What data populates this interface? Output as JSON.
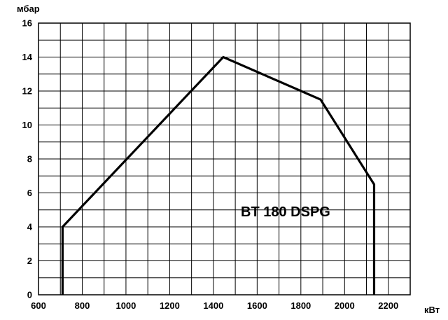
{
  "chart_data": {
    "type": "line",
    "title": "",
    "xlabel": "кВт",
    "ylabel": "мбар",
    "xlim": [
      600,
      2300
    ],
    "ylim": [
      0,
      16
    ],
    "x_ticks": [
      600,
      800,
      1000,
      1200,
      1400,
      1600,
      1800,
      2000,
      2200
    ],
    "y_ticks": [
      0,
      2,
      4,
      6,
      8,
      10,
      12,
      14,
      16
    ],
    "x_minor_step": 100,
    "y_minor_step": 1,
    "grid": true,
    "series": [
      {
        "x": [
          710,
          710,
          1445,
          1890,
          2135,
          2135
        ],
        "y": [
          0,
          4,
          14,
          11.5,
          6.5,
          0
        ],
        "color": "#000000"
      }
    ],
    "annotations": [
      {
        "text": "BT 180 DSPG",
        "x": 1730,
        "y": 4.9
      }
    ]
  }
}
